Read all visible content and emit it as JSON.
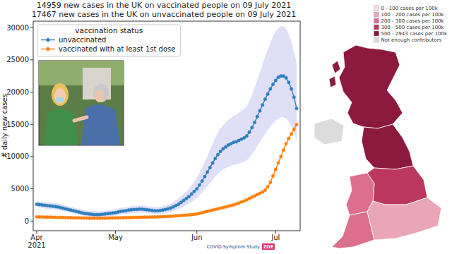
{
  "chart_data": {
    "type": "line",
    "title": "14959 new cases in the UK on vaccinated people on 09 July 2021",
    "subtitle": "17467 new cases in the UK on unvaccinated people on 09 July 2021",
    "y_label": "# daily new cases",
    "legend_title": "vaccination status",
    "legend": "upper left",
    "grid": false,
    "annotations": [
      "COVID Symptom Study",
      "ZOE"
    ],
    "categories": [
      "Apr 2021",
      null,
      null,
      null,
      null,
      null,
      null,
      null,
      null,
      null,
      null,
      null,
      null,
      null,
      null,
      null,
      null,
      null,
      null,
      null,
      null,
      null,
      null,
      null,
      null,
      null,
      null,
      null,
      null,
      null,
      "May",
      null,
      null,
      null,
      null,
      null,
      null,
      null,
      null,
      null,
      null,
      null,
      null,
      null,
      null,
      null,
      null,
      null,
      null,
      null,
      null,
      null,
      null,
      null,
      null,
      null,
      null,
      null,
      null,
      null,
      null,
      "Jun",
      null,
      null,
      null,
      null,
      null,
      null,
      null,
      null,
      null,
      null,
      null,
      null,
      null,
      null,
      null,
      null,
      null,
      null,
      null,
      null,
      null,
      null,
      null,
      null,
      null,
      null,
      null,
      null,
      null,
      "Jul",
      null,
      null,
      null,
      null,
      null,
      null,
      null,
      null
    ],
    "ylim": [
      -1500,
      31000
    ],
    "yticks": [
      0,
      5000,
      10000,
      15000,
      20000,
      25000,
      30000
    ],
    "series": [
      {
        "name": "unvaccinated",
        "color": "#2c7fbf",
        "marker": "circle",
        "line_style": "solid",
        "values": [
          2600,
          2550,
          2500,
          2450,
          2400,
          2350,
          2300,
          2250,
          2200,
          2100,
          2000,
          1900,
          1800,
          1700,
          1600,
          1500,
          1400,
          1300,
          1200,
          1150,
          1100,
          1050,
          1000,
          1000,
          1000,
          1050,
          1100,
          1150,
          1200,
          1250,
          1300,
          1400,
          1500,
          1550,
          1600,
          1700,
          1750,
          1800,
          1800,
          1850,
          1850,
          1800,
          1750,
          1700,
          1650,
          1600,
          1600,
          1650,
          1700,
          1800,
          1900,
          2000,
          2200,
          2400,
          2600,
          2900,
          3200,
          3500,
          3800,
          4200,
          4600,
          5000,
          5600,
          6200,
          6900,
          7600,
          8300,
          9000,
          9700,
          10300,
          10800,
          11200,
          11500,
          11800,
          12000,
          12200,
          12300,
          12500,
          12700,
          12900,
          13200,
          13800,
          14500,
          15300,
          16200,
          17100,
          18000,
          18900,
          19700,
          20500,
          21200,
          21800,
          22300,
          22500,
          22500,
          22200,
          21500,
          20500,
          19200,
          17467
        ],
        "lower": [
          2100,
          2050,
          2000,
          1950,
          1900,
          1850,
          1800,
          1750,
          1700,
          1650,
          1550,
          1450,
          1350,
          1250,
          1150,
          1050,
          950,
          850,
          800,
          750,
          700,
          650,
          600,
          600,
          600,
          650,
          700,
          700,
          750,
          800,
          850,
          900,
          1000,
          1050,
          1100,
          1150,
          1200,
          1250,
          1250,
          1300,
          1300,
          1250,
          1200,
          1200,
          1150,
          1100,
          1100,
          1150,
          1200,
          1250,
          1300,
          1400,
          1550,
          1700,
          1850,
          2050,
          2250,
          2500,
          2700,
          3000,
          3300,
          3600,
          4000,
          4400,
          4900,
          5400,
          5900,
          6400,
          6900,
          7300,
          7700,
          8000,
          8200,
          8400,
          8600,
          8700,
          8800,
          8900,
          9100,
          9200,
          9400,
          9900,
          10400,
          10900,
          11600,
          12200,
          12900,
          13500,
          14100,
          14700,
          15200,
          15600,
          15900,
          16100,
          16100,
          15900,
          15400,
          14700,
          13700,
          12500
        ],
        "upper": [
          3100,
          3050,
          3000,
          2950,
          2900,
          2850,
          2800,
          2750,
          2700,
          2600,
          2500,
          2400,
          2300,
          2200,
          2100,
          2000,
          1900,
          1800,
          1700,
          1650,
          1600,
          1550,
          1500,
          1500,
          1500,
          1550,
          1600,
          1650,
          1700,
          1750,
          1850,
          1950,
          2050,
          2100,
          2150,
          2250,
          2300,
          2350,
          2350,
          2400,
          2400,
          2350,
          2300,
          2250,
          2200,
          2150,
          2150,
          2200,
          2300,
          2400,
          2550,
          2700,
          2950,
          3200,
          3500,
          3850,
          4250,
          4650,
          5050,
          5550,
          6100,
          6700,
          7500,
          8300,
          9200,
          10100,
          11000,
          12000,
          12900,
          13700,
          14400,
          14900,
          15300,
          15700,
          16000,
          16300,
          16500,
          16800,
          17100,
          17400,
          17800,
          18600,
          19600,
          20700,
          21900,
          23100,
          24300,
          25500,
          26600,
          27700,
          28700,
          29400,
          29900,
          30200,
          30200,
          29800,
          29000,
          27800,
          26200,
          24500
        ]
      },
      {
        "name": "vaccinated with at least 1st dose",
        "color": "#ff7f0e",
        "marker": "circle",
        "line_style": "solid",
        "values": [
          650,
          640,
          630,
          620,
          610,
          600,
          590,
          580,
          570,
          560,
          550,
          540,
          530,
          520,
          510,
          500,
          490,
          480,
          470,
          460,
          450,
          450,
          440,
          440,
          440,
          450,
          450,
          460,
          470,
          480,
          490,
          500,
          510,
          520,
          530,
          540,
          550,
          560,
          570,
          580,
          590,
          600,
          610,
          620,
          630,
          640,
          650,
          660,
          680,
          700,
          720,
          740,
          760,
          790,
          820,
          850,
          880,
          920,
          960,
          1000,
          1050,
          1100,
          1200,
          1300,
          1400,
          1500,
          1600,
          1700,
          1800,
          1900,
          2000,
          2100,
          2200,
          2300,
          2400,
          2500,
          2650,
          2800,
          2950,
          3100,
          3300,
          3500,
          3700,
          3900,
          4100,
          4300,
          4500,
          4800,
          5300,
          6000,
          7000,
          8000,
          9000,
          10000,
          11000,
          12000,
          12800,
          13500,
          14200,
          14959
        ]
      }
    ]
  },
  "map": {
    "legend": [
      {
        "label": "0 - 100 cases per 100k",
        "color": "#f6d9e1"
      },
      {
        "label": "100 - 200 cases per 100k",
        "color": "#eba5b8"
      },
      {
        "label": "200 - 300 cases per 100k",
        "color": "#dc6f8c"
      },
      {
        "label": "300 - 500 cases per 100k",
        "color": "#bb3760"
      },
      {
        "label": "500 - 2943 cases per 100k",
        "color": "#8c1a3f"
      },
      {
        "label": "Not enough contributors",
        "color": "#dcdcdc"
      }
    ]
  }
}
